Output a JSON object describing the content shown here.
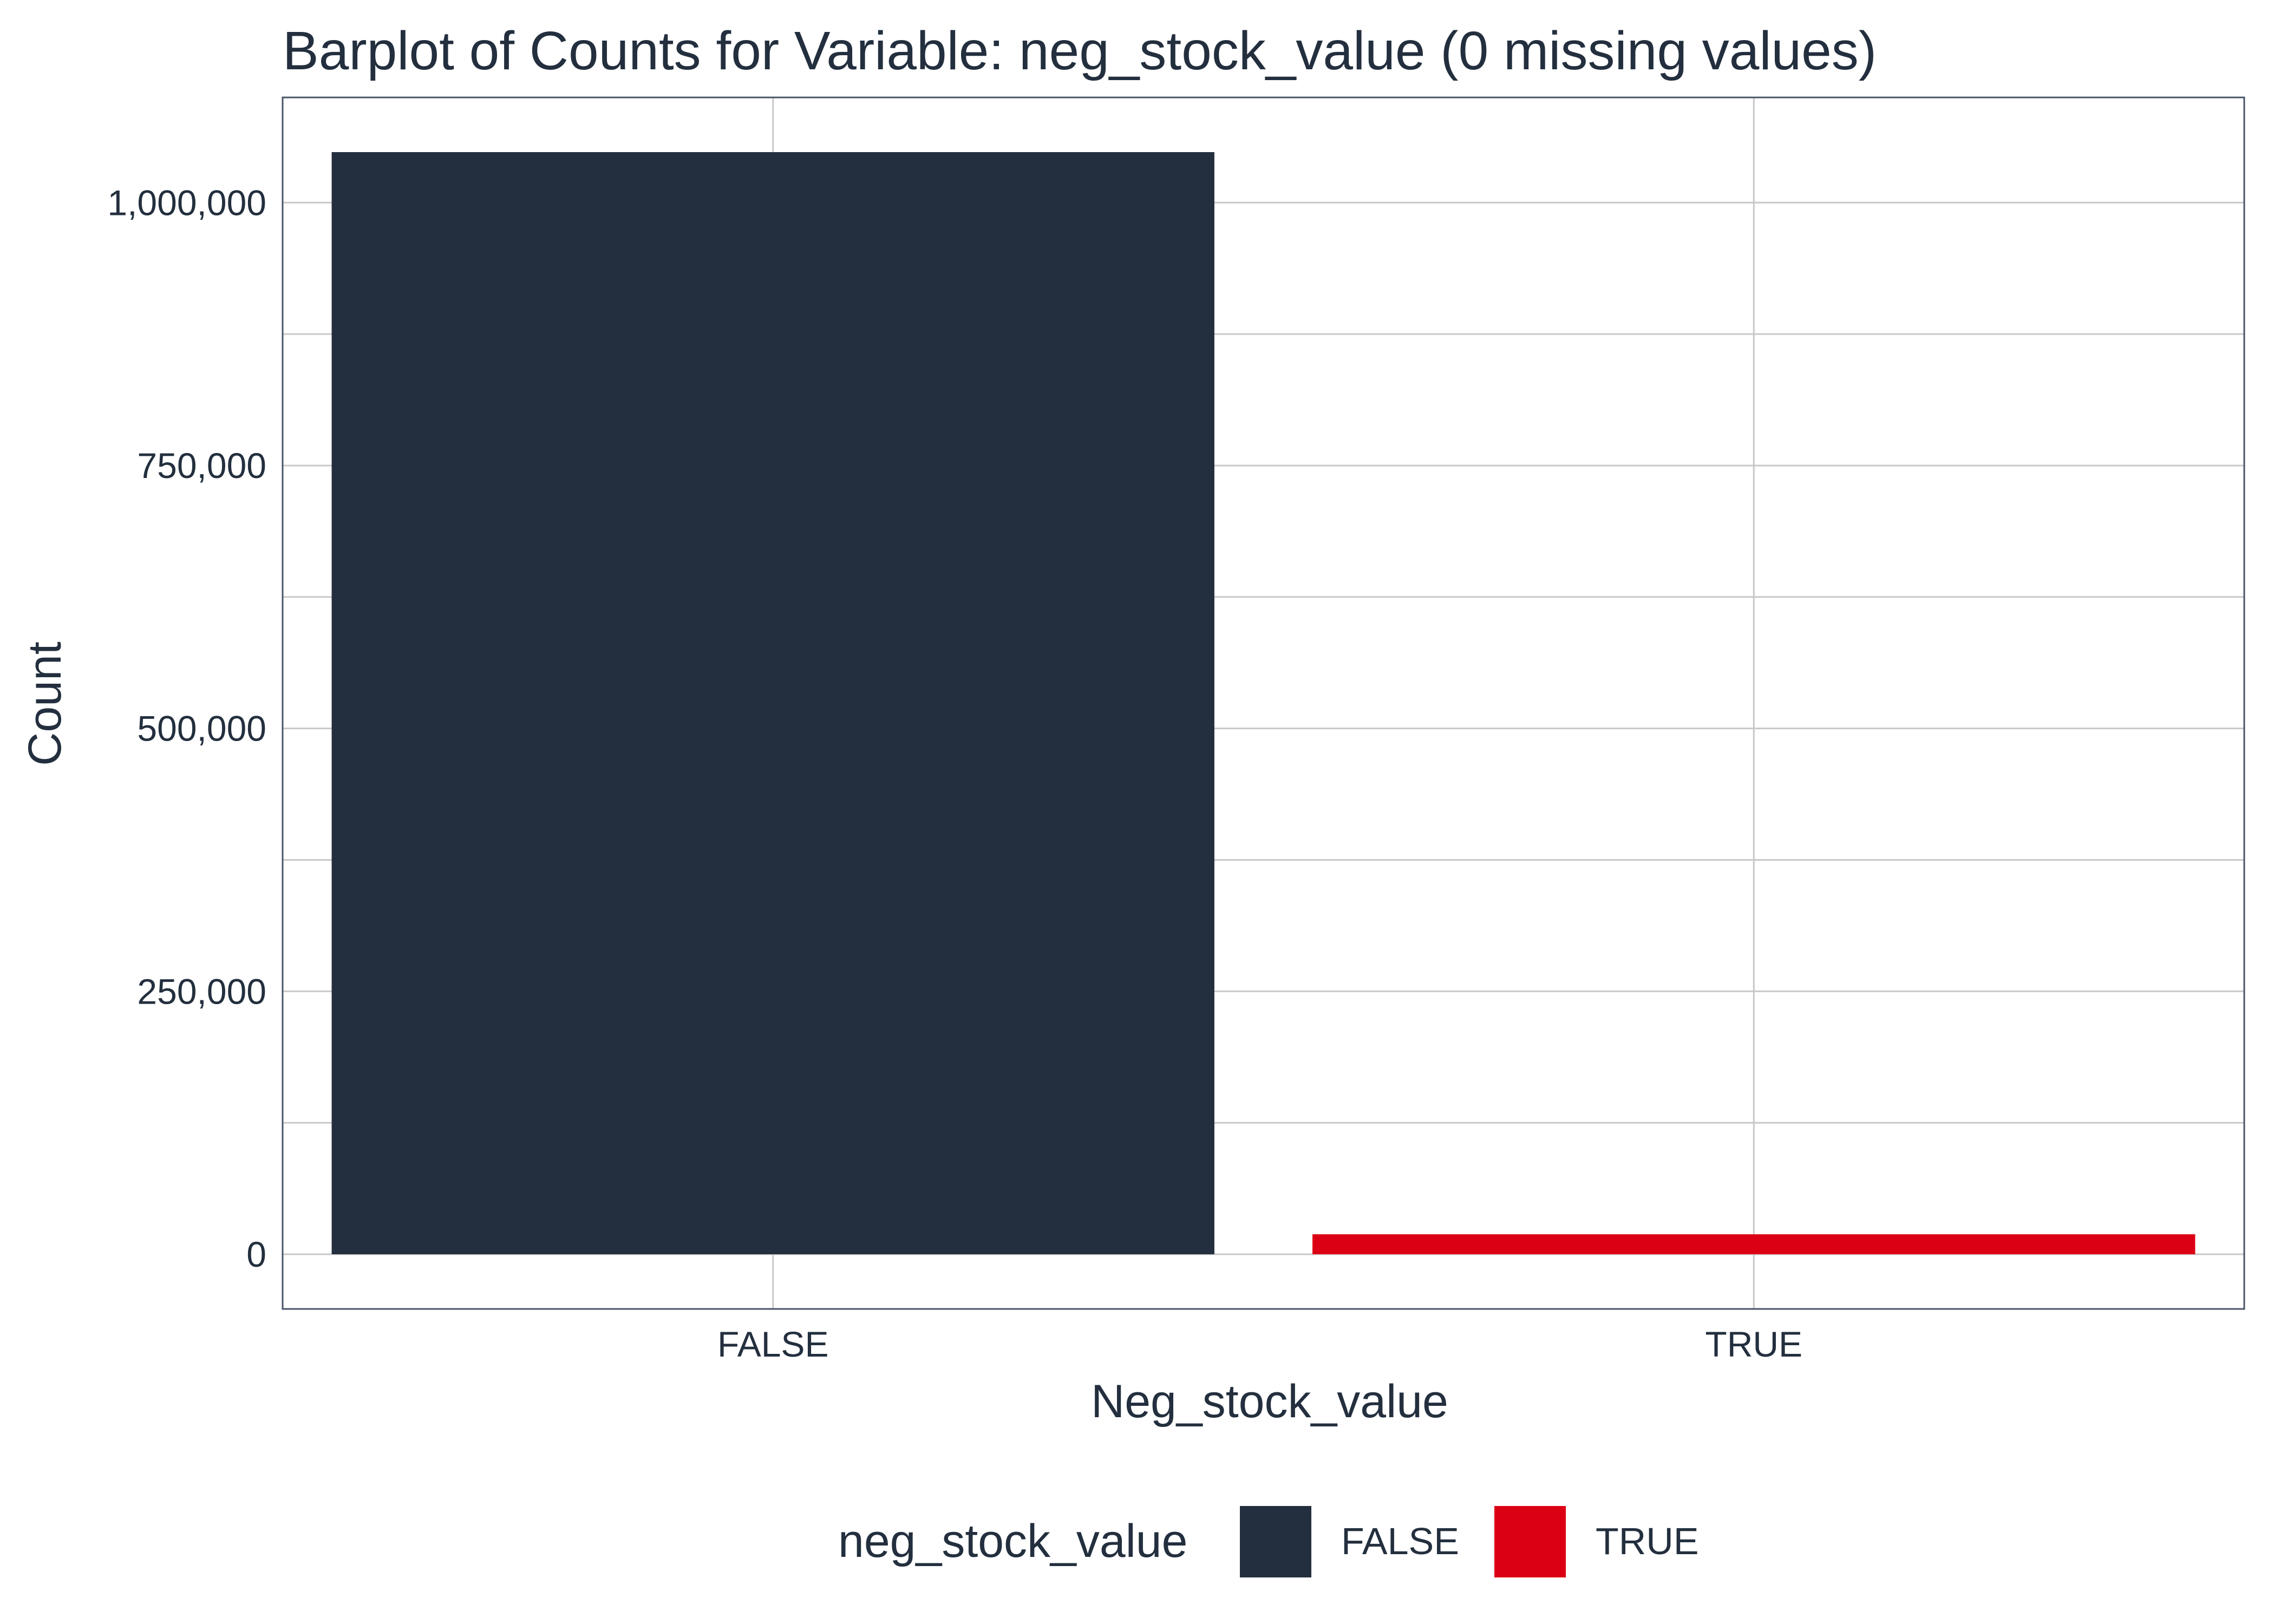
{
  "chart_data": {
    "type": "bar",
    "title": "Barplot of Counts for Variable: neg_stock_value (0 missing values)",
    "xlabel": "Neg_stock_value",
    "ylabel": "Count",
    "categories": [
      "FALSE",
      "TRUE"
    ],
    "values": [
      1048000,
      19000
    ],
    "colors": [
      "#232f3e",
      "#dc0014"
    ],
    "ylim": [
      -52000,
      1100000
    ],
    "yticks": [
      0,
      250000,
      500000,
      750000,
      1000000
    ],
    "ytick_labels": [
      "0",
      "250,000",
      "500,000",
      "750,000",
      "1,000,000"
    ],
    "grid": true,
    "legend": {
      "title": "neg_stock_value",
      "position": "bottom",
      "items": [
        {
          "label": "FALSE",
          "color": "#232f3e"
        },
        {
          "label": "TRUE",
          "color": "#dc0014"
        }
      ]
    }
  }
}
